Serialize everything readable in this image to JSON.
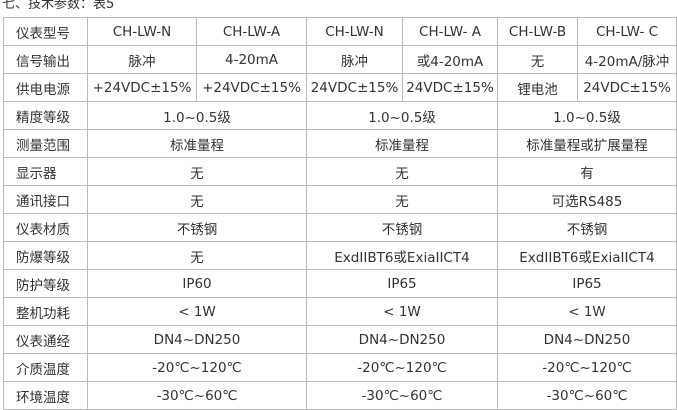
{
  "title": "七、技术参数：表5",
  "rows": [
    {
      "label": "仪表型号",
      "cells": [
        [
          "CH-LW-N",
          1
        ],
        [
          "CH-LW-A",
          1
        ],
        [
          "CH-LW-N",
          1
        ],
        [
          "CH-LW- A",
          1
        ],
        [
          "CH-LW-B",
          1
        ],
        [
          "CH-LW- C",
          1
        ]
      ]
    },
    {
      "label": "信号输出",
      "cells": [
        [
          "脉冲",
          1
        ],
        [
          "4-20mA",
          1
        ],
        [
          "脉冲",
          1
        ],
        [
          "或4-20mA",
          1
        ],
        [
          "无",
          1
        ],
        [
          "4-20mA/脉冲",
          1
        ]
      ]
    },
    {
      "label": "供电电源",
      "cells": [
        [
          "+24VDC±15%",
          1
        ],
        [
          "+24VDC±15%",
          1
        ],
        [
          "24VDC±15%",
          1
        ],
        [
          "24VDC±15%",
          1
        ],
        [
          "锂电池",
          1
        ],
        [
          "24VDC±15%",
          1
        ]
      ]
    },
    {
      "label": "精度等级",
      "cells": [
        [
          "1.0~0.5级",
          2
        ],
        [
          "1.0~0.5级",
          2
        ],
        [
          "1.0~0.5级",
          2
        ]
      ]
    },
    {
      "label": "测量范围",
      "cells": [
        [
          "标准量程",
          2
        ],
        [
          "标准量程",
          2
        ],
        [
          "标准量程或扩展量程",
          2
        ]
      ]
    },
    {
      "label": "显示器",
      "cells": [
        [
          "无",
          2
        ],
        [
          "无",
          2
        ],
        [
          "有",
          2
        ]
      ]
    },
    {
      "label": "通讯接口",
      "cells": [
        [
          "无",
          2
        ],
        [
          "无",
          2
        ],
        [
          "可选RS485",
          2
        ]
      ]
    },
    {
      "label": "仪表材质",
      "cells": [
        [
          "不锈钢",
          2
        ],
        [
          "不锈钢",
          2
        ],
        [
          "不锈钢",
          2
        ]
      ]
    },
    {
      "label": "防爆等级",
      "cells": [
        [
          "无",
          2
        ],
        [
          "ExdIIBT6或ExiaIICT4",
          2
        ],
        [
          "ExdIIBT6或ExiaIICT4",
          2
        ]
      ]
    },
    {
      "label": "防护等级",
      "cells": [
        [
          "IP60",
          2
        ],
        [
          "IP65",
          2
        ],
        [
          "IP65",
          2
        ]
      ]
    },
    {
      "label": "整机功耗",
      "cells": [
        [
          "< 1W",
          2
        ],
        [
          "< 1W",
          2
        ],
        [
          "< 1W",
          2
        ]
      ]
    },
    {
      "label": "仪表通经",
      "cells": [
        [
          "DN4~DN250",
          2
        ],
        [
          "DN4~DN250",
          2
        ],
        [
          "DN4~DN250",
          2
        ]
      ]
    },
    {
      "label": "介质温度",
      "cells": [
        [
          "-20℃~120℃",
          2
        ],
        [
          "-20℃~120℃",
          2
        ],
        [
          "-20℃~120℃",
          2
        ]
      ]
    },
    {
      "label": "环境温度",
      "cells": [
        [
          "-30℃~60℃",
          2
        ],
        [
          "-30℃~60℃",
          2
        ],
        [
          "-30℃~60℃",
          2
        ]
      ]
    }
  ]
}
